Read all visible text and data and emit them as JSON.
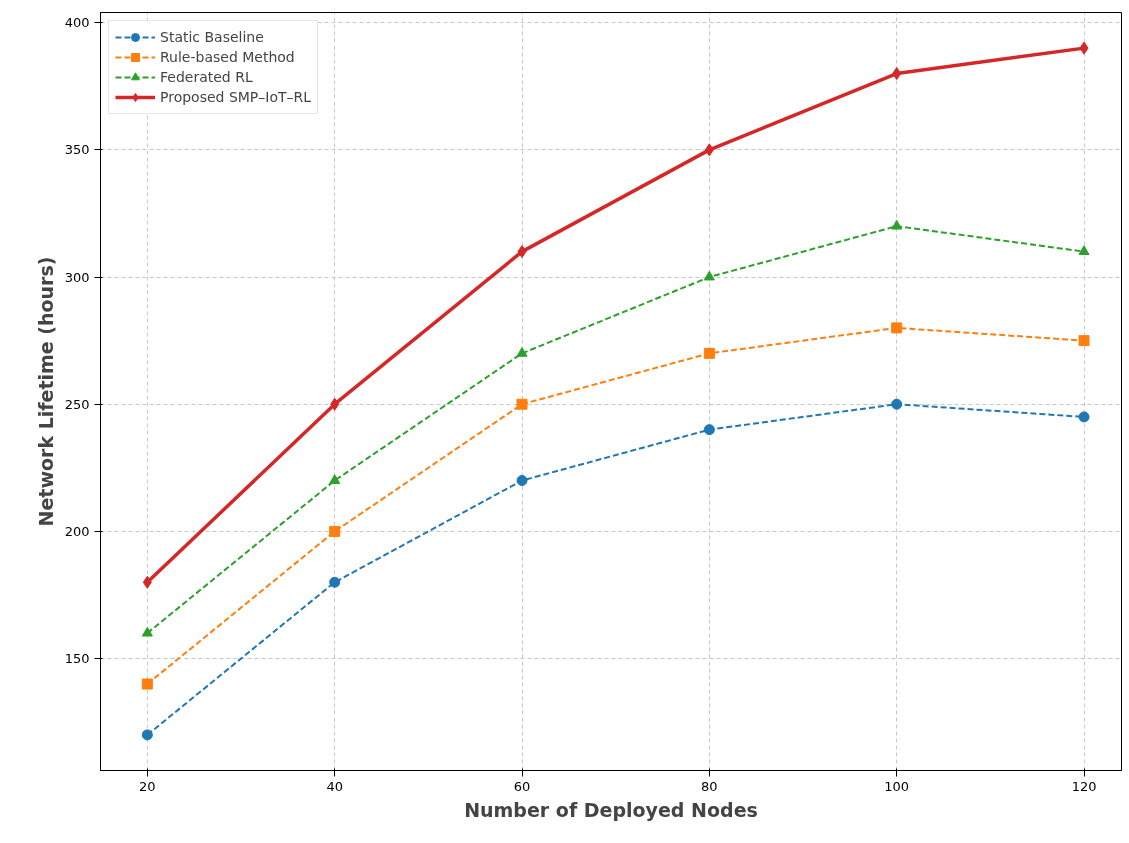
{
  "chart_data": {
    "type": "line",
    "xlabel": "Number of Deployed Nodes",
    "ylabel": "Network Lifetime (hours)",
    "x": [
      20,
      40,
      60,
      80,
      100,
      120
    ],
    "xlim": [
      15,
      124
    ],
    "xticks": [
      20,
      40,
      60,
      80,
      100,
      120
    ],
    "ylim": [
      106,
      404
    ],
    "yticks": [
      150,
      200,
      250,
      300,
      350,
      400
    ],
    "grid": true,
    "legend": "top left",
    "series": [
      {
        "name": "Static Baseline",
        "color": "#1f77b4",
        "marker": "circle",
        "line_style": "dashed",
        "values": [
          120,
          180,
          220,
          240,
          250,
          245
        ]
      },
      {
        "name": "Rule-based Method",
        "color": "#ff7f0e",
        "marker": "square",
        "line_style": "dashed",
        "values": [
          140,
          200,
          250,
          270,
          280,
          275
        ]
      },
      {
        "name": "Federated RL",
        "color": "#2ca02c",
        "marker": "triangle",
        "line_style": "dashed",
        "values": [
          160,
          220,
          270,
          300,
          320,
          310
        ]
      },
      {
        "name": "Proposed SMP–IoT–RL",
        "color": "#d62728",
        "marker": "diamond",
        "line_style": "solid",
        "values": [
          180,
          250,
          310,
          350,
          380,
          390
        ]
      }
    ]
  }
}
